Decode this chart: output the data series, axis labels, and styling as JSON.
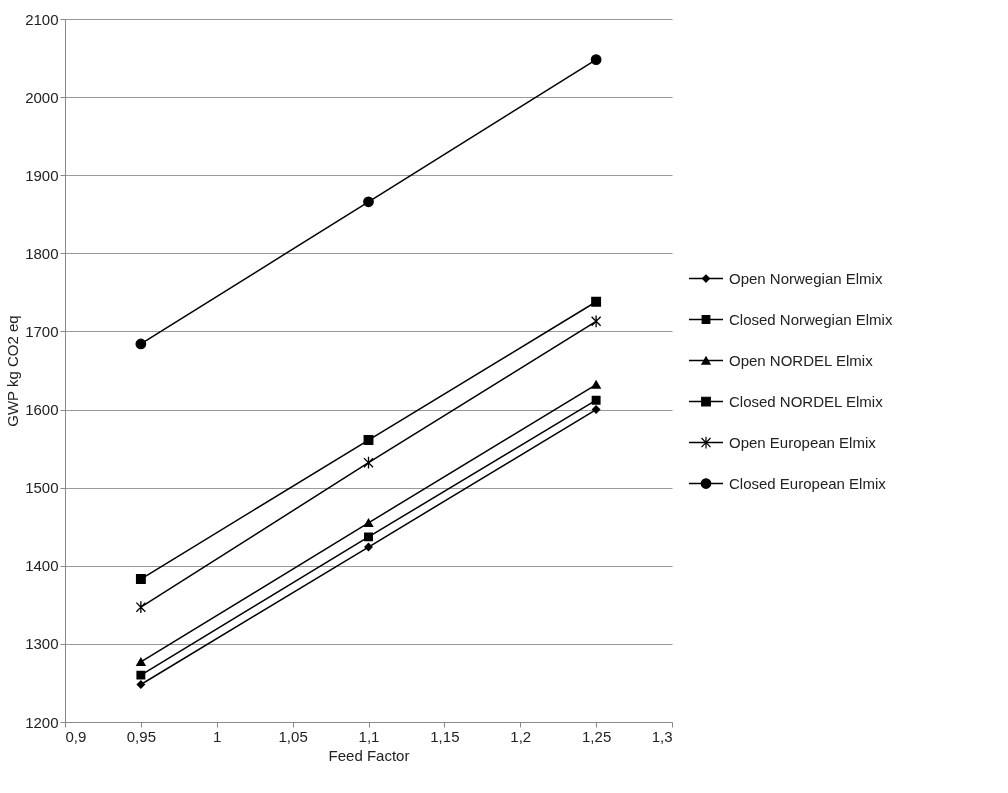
{
  "chart_data": {
    "type": "line",
    "xlabel": "Feed Factor",
    "ylabel": "GWP kg CO2 eq",
    "x": [
      0.95,
      1.1,
      1.25
    ],
    "series": [
      {
        "name": "Open Norwegian Elmix",
        "color": "#000000",
        "marker": "diamond",
        "values": [
          1248,
          1424,
          1600
        ]
      },
      {
        "name": "Closed Norwegian Elmix",
        "color": "#000000",
        "marker": "square",
        "values": [
          1260,
          1437,
          1612
        ]
      },
      {
        "name": "Open NORDEL Elmix",
        "color": "#000000",
        "marker": "triangle",
        "values": [
          1277,
          1455,
          1632
        ]
      },
      {
        "name": "Closed NORDEL Elmix",
        "color": "#000000",
        "marker": "square",
        "values": [
          1383,
          1561,
          1738
        ]
      },
      {
        "name": "Open European Elmix",
        "color": "#000000",
        "marker": "cross",
        "values": [
          1347,
          1532,
          1713
        ]
      },
      {
        "name": "Closed European Elmix",
        "color": "#000000",
        "marker": "circle",
        "values": [
          1684,
          1866,
          2048
        ]
      }
    ],
    "xlim": [
      0.9,
      1.3
    ],
    "xticks": [
      {
        "value": 0.9,
        "label": "0,9"
      },
      {
        "value": 0.95,
        "label": "0,95"
      },
      1,
      {
        "value": 1.05,
        "label": "1,05"
      },
      {
        "value": 1.1,
        "label": "1,1"
      },
      {
        "value": 1.15,
        "label": "1,15"
      },
      {
        "value": 1.2,
        "label": "1,2"
      },
      {
        "value": 1.25,
        "label": "1,25"
      },
      {
        "value": 1.3,
        "label": "1,3"
      }
    ],
    "ylim": [
      1200,
      2100
    ],
    "yticks": [
      1200,
      1300,
      1400,
      1500,
      1600,
      1700,
      1800,
      1900,
      2000,
      2100
    ],
    "grid": "y",
    "legend": "right",
    "line_style": "solid"
  }
}
